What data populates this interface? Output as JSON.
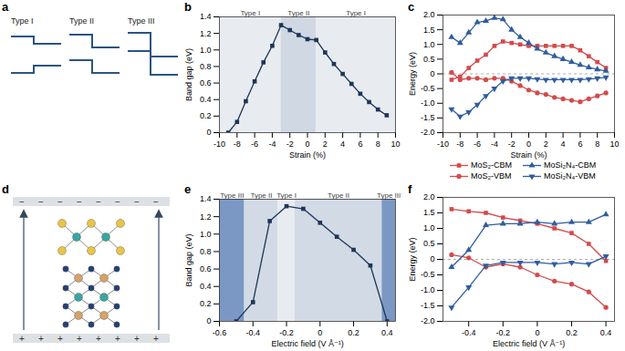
{
  "diagrams": {
    "a": {
      "panel": "a",
      "type": "diagram",
      "labels": [
        "Type I",
        "Type II",
        "Type III"
      ],
      "color": "#2b5580"
    },
    "d": {
      "panel": "d",
      "type": "diagram",
      "top_plate_sign": "−",
      "bottom_plate_sign": "+"
    }
  },
  "chart_data": [
    {
      "panel": "b",
      "type": "line",
      "xlabel": "Strain (%)",
      "ylabel": "Band gap (eV)",
      "x": [
        -9,
        -8,
        -7,
        -6,
        -5,
        -4,
        -3,
        -2,
        -1,
        0,
        1,
        2,
        3,
        4,
        5,
        6,
        7,
        8,
        9
      ],
      "values": [
        0.0,
        0.13,
        0.38,
        0.62,
        0.85,
        1.05,
        1.3,
        1.24,
        1.18,
        1.13,
        1.12,
        0.97,
        0.83,
        0.71,
        0.59,
        0.47,
        0.37,
        0.28,
        0.21
      ],
      "color": "#1d3557",
      "marker": "square",
      "xlim": [
        -10,
        10
      ],
      "xticks": [
        -10,
        -8,
        -6,
        -4,
        -2,
        0,
        2,
        4,
        6,
        8,
        10
      ],
      "ylim": [
        0,
        1.4
      ],
      "yticks": [
        0,
        0.2,
        0.4,
        0.6,
        0.8,
        {
          "value": 1,
          "label": "1.0"
        },
        1.2,
        1.4
      ],
      "grid": false,
      "regions": [
        {
          "x1": -10,
          "x2": -3,
          "label": "Type I",
          "color": "#e8ecf1"
        },
        {
          "x1": -3,
          "x2": 1,
          "label": "Type II",
          "color": "#cfd8e3"
        },
        {
          "x1": 1,
          "x2": 10,
          "label": "Type I",
          "color": "#e8ecf1"
        }
      ]
    },
    {
      "panel": "c",
      "type": "line",
      "xlabel": "Strain (%)",
      "ylabel": "Energy (eV)",
      "x": [
        -9,
        -8,
        -7,
        -6,
        -5,
        -4,
        -3,
        -2,
        -1,
        0,
        1,
        2,
        3,
        4,
        5,
        6,
        7,
        8,
        9
      ],
      "series": [
        {
          "name": "MoS₂-CBM",
          "color": "#d44a4a",
          "marker": "square",
          "values": [
            -0.2,
            -0.1,
            0.2,
            0.45,
            0.65,
            0.95,
            1.1,
            1.05,
            1.0,
            0.95,
            0.95,
            0.95,
            0.95,
            0.95,
            0.95,
            0.8,
            0.6,
            0.4,
            0.2
          ]
        },
        {
          "name": "MoS₂-VBM",
          "color": "#d44a4a",
          "marker": "circle",
          "values": [
            0.05,
            -0.2,
            -0.15,
            -0.15,
            -0.2,
            -0.15,
            -0.15,
            -0.25,
            -0.4,
            -0.55,
            -0.65,
            -0.7,
            -0.8,
            -0.85,
            -0.9,
            -0.95,
            -0.85,
            -0.75,
            -0.65
          ]
        },
        {
          "name": "MoSi₂N₄-CBM",
          "color": "#2f5d9e",
          "marker": "triangle",
          "values": [
            1.25,
            1.05,
            1.4,
            1.75,
            1.8,
            1.9,
            1.85,
            1.5,
            1.25,
            1.05,
            0.85,
            0.72,
            0.6,
            0.5,
            0.4,
            0.3,
            0.22,
            0.15,
            0.1
          ]
        },
        {
          "name": "MoSi₂N₄-VBM",
          "color": "#2f5d9e",
          "marker": "triangle-down",
          "values": [
            -1.2,
            -1.45,
            -1.3,
            -1.05,
            -0.75,
            -0.5,
            -0.25,
            -0.15,
            -0.15,
            -0.15,
            -0.18,
            -0.2,
            -0.2,
            -0.2,
            -0.2,
            -0.2,
            -0.18,
            -0.15,
            -0.12
          ]
        }
      ],
      "xlim": [
        -10,
        10
      ],
      "xticks": [
        -10,
        -8,
        -6,
        -4,
        -2,
        0,
        2,
        4,
        6,
        8,
        10
      ],
      "ylim": [
        -2,
        2
      ],
      "yticks": [
        {
          "value": -2,
          "label": "-2.0"
        },
        -1.5,
        {
          "value": -1,
          "label": "-1.0"
        },
        -0.5,
        0,
        0.5,
        {
          "value": 1,
          "label": "1.0"
        },
        1.5,
        {
          "value": 2,
          "label": "2.0"
        }
      ],
      "grid": false,
      "reference_lines": [
        {
          "y": 0,
          "line_style": "dashed"
        }
      ]
    },
    {
      "panel": "e",
      "type": "line",
      "xlabel": "Electric field (V Å⁻¹)",
      "ylabel": "Band gap (eV)",
      "x": [
        -0.5,
        -0.4,
        -0.3,
        -0.2,
        -0.1,
        0,
        0.1,
        0.2,
        0.3,
        0.4
      ],
      "values": [
        0.0,
        0.22,
        1.15,
        1.32,
        1.29,
        1.13,
        0.97,
        0.82,
        0.64,
        0.0
      ],
      "color": "#1d3557",
      "marker": "square",
      "xlim": [
        -0.6,
        0.45
      ],
      "xticks": [
        -0.6,
        -0.4,
        -0.2,
        0,
        0.2,
        0.4
      ],
      "ylim": [
        0,
        1.4
      ],
      "yticks": [
        0,
        0.2,
        0.4,
        0.6,
        0.8,
        {
          "value": 1,
          "label": "1.0"
        },
        1.2,
        1.4
      ],
      "grid": false,
      "regions": [
        {
          "x1": -0.6,
          "x2": -0.45,
          "label": "Type III",
          "color": "#7b98c4"
        },
        {
          "x1": -0.45,
          "x2": -0.25,
          "label": "Type II",
          "color": "#d2dae5"
        },
        {
          "x1": -0.25,
          "x2": -0.15,
          "label": "Type I",
          "color": "#e8ecf1"
        },
        {
          "x1": -0.15,
          "x2": 0.37,
          "label": "Type II",
          "color": "#d2dae5"
        },
        {
          "x1": 0.37,
          "x2": 0.45,
          "label": "Type III",
          "color": "#7b98c4"
        }
      ]
    },
    {
      "panel": "f",
      "type": "line",
      "xlabel": "Electric field (V Å⁻¹)",
      "ylabel": "Energy (eV)",
      "x": [
        -0.5,
        -0.4,
        -0.3,
        -0.2,
        -0.1,
        0,
        0.1,
        0.2,
        0.3,
        0.4
      ],
      "series": [
        {
          "name": "MoS₂-CBM",
          "color": "#d44a4a",
          "marker": "square",
          "values": [
            1.62,
            1.55,
            1.5,
            1.35,
            1.25,
            1.15,
            1.0,
            0.85,
            0.5,
            -0.05
          ]
        },
        {
          "name": "MoS₂-VBM",
          "color": "#d44a4a",
          "marker": "circle",
          "values": [
            0.15,
            0.05,
            -0.25,
            -0.15,
            -0.25,
            -0.5,
            -0.7,
            -0.8,
            -1.05,
            -1.55
          ]
        },
        {
          "name": "MoSi₂N₄-CBM",
          "color": "#2f5d9e",
          "marker": "triangle",
          "values": [
            -0.25,
            0.3,
            1.1,
            1.15,
            1.15,
            1.2,
            1.15,
            1.2,
            1.2,
            1.45
          ]
        },
        {
          "name": "MoSi₂N₄-VBM",
          "color": "#2f5d9e",
          "marker": "triangle-down",
          "values": [
            -1.55,
            -0.9,
            -0.2,
            -0.1,
            -0.1,
            -0.1,
            -0.15,
            -0.1,
            -0.15,
            0.1
          ]
        }
      ],
      "xlim": [
        -0.55,
        0.45
      ],
      "xticks": [
        -0.4,
        -0.2,
        0,
        0.2,
        0.4
      ],
      "ylim": [
        -2,
        2
      ],
      "yticks": [
        {
          "value": -2,
          "label": "-2.0"
        },
        -1.5,
        {
          "value": -1,
          "label": "-1.0"
        },
        -0.5,
        0,
        0.5,
        {
          "value": 1,
          "label": "1.0"
        },
        1.5,
        {
          "value": 2,
          "label": "2.0"
        }
      ],
      "grid": false,
      "legend": "top",
      "reference_lines": [
        {
          "y": 0,
          "line_style": "dashed"
        }
      ]
    }
  ]
}
